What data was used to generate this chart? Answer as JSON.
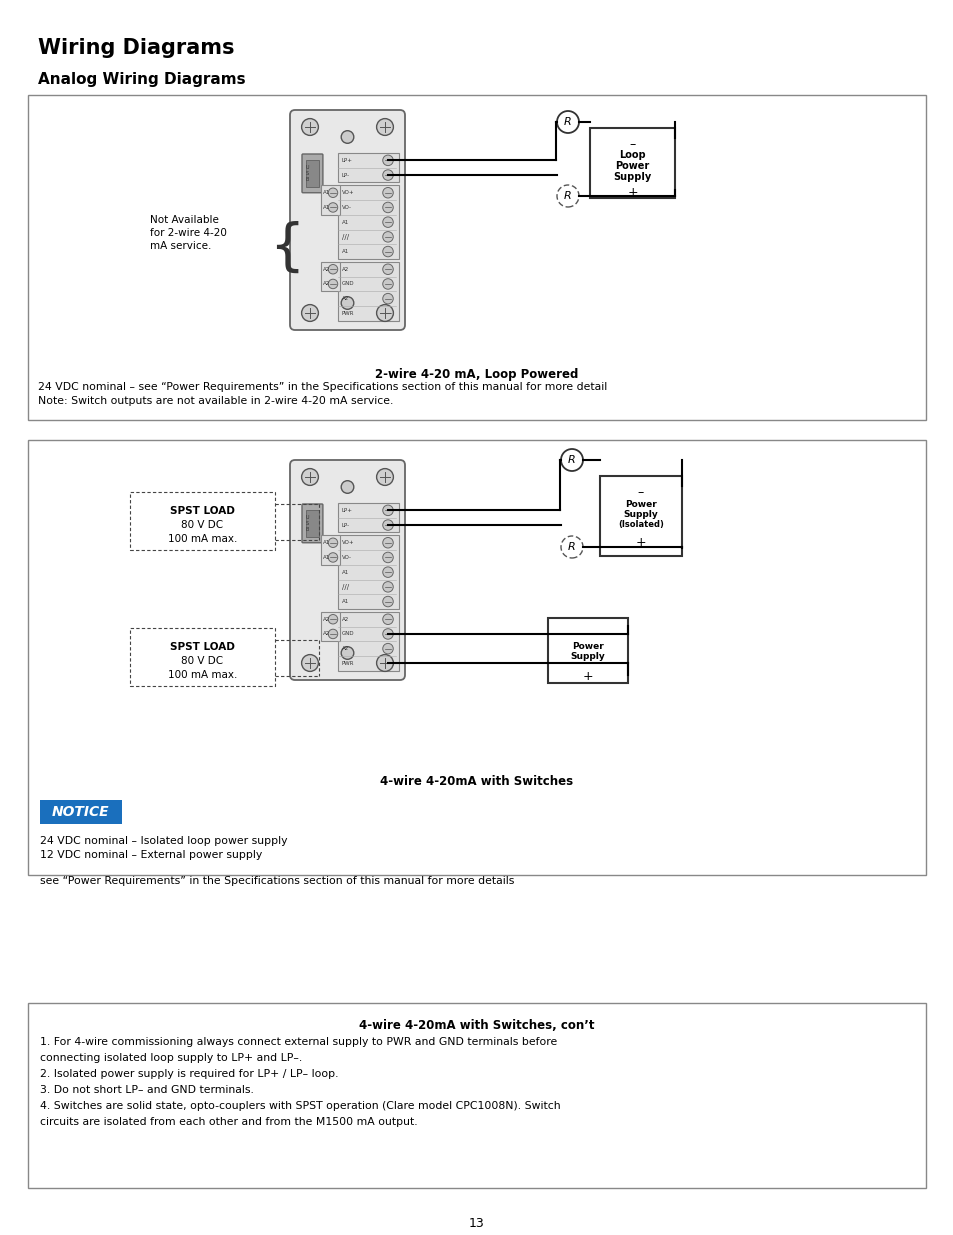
{
  "page_bg": "#ffffff",
  "title": "Wiring Diagrams",
  "subtitle": "Analog Wiring Diagrams",
  "page_number": "13",
  "box1_caption_bold": "2-wire 4-20 mA, Loop Powered",
  "box1_caption_line1": "24 VDC nominal – see “Power Requirements” in the Specifications section of this manual for more detail",
  "box1_caption_line2": "Note: Switch outputs are not available in 2-wire 4-20 mA service.",
  "box2_caption_bold": "4-wire 4-20mA with Switches",
  "notice_label": "NOTICE",
  "notice_line1": "24 VDC nominal – Isolated loop power supply",
  "notice_line2": "12 VDC nominal – External power supply",
  "notice_line3": "see “Power Requirements” in the Specifications section of this manual for more details",
  "box3_caption_bold": "4-wire 4-20mA with Switches, con’t",
  "box3_line1": "1. For 4-wire commissioning always connect external supply to PWR and GND terminals before",
  "box3_line2": "connecting isolated loop supply to LP+ and LP–.",
  "box3_line3": "2. Isolated power supply is required for LP+ / LP– loop.",
  "box3_line4": "3. Do not short LP– and GND terminals.",
  "box3_line5": "4. Switches are solid state, opto-couplers with SPST operation (Clare model CPC1008N). Switch",
  "box3_line6": "circuits are isolated from each other and from the M1500 mA output.",
  "notice_bg": "#1a6fbd",
  "notice_text_color": "#ffffff"
}
